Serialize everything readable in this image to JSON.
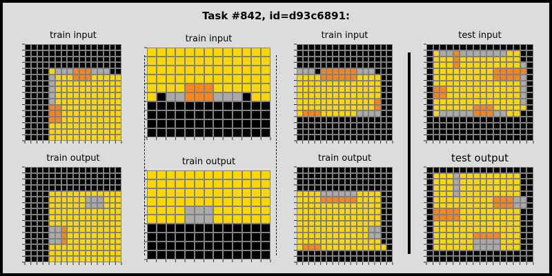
{
  "title": "Task #842, id=d93c6891:",
  "palette": {
    "0": "#000000",
    "4": "#ffd700",
    "5": "#aaaaaa",
    "7": "#ff851b"
  },
  "panels": [
    {
      "label": "train input",
      "rows": [
        "0000000000000000",
        "0000000000000000",
        "0000000000000000",
        "0000000000000000",
        "0000455577755500",
        "0000544477744444",
        "0000544444444444",
        "0000544444444444",
        "0000544444444444",
        "0000544444444444",
        "0000774444444444",
        "0000774444444444",
        "0000774444444444",
        "0000444444444444",
        "0000444444444444",
        "0000444444444444"
      ]
    },
    {
      "label": "train output",
      "rows": [
        "0000000000000000",
        "0000000000000000",
        "0000000000000000",
        "0000000000000000",
        "0000444444444444",
        "0000444444555444",
        "0000444444555444",
        "0000444444444444",
        "0000444444444444",
        "0000444444444444",
        "0000557444444444",
        "0000557444444444",
        "0000557444444444",
        "0000444444444444",
        "0000444444444444",
        "0000444444444444"
      ]
    },
    {
      "label": "train input",
      "rows": [
        "4444444444444",
        "4444444444444",
        "4444444444444",
        "4444444444444",
        "4444777444444",
        "4255777555244",
        "0000000000000",
        "0000000000000",
        "0000000000000",
        "0000000000000"
      ]
    },
    {
      "label": "train output",
      "rows": [
        "4444444444444",
        "4444444444444",
        "4444444444444",
        "4444444444444",
        "4444555444444",
        "4444555444444",
        "0000000000000",
        "0000000000000",
        "0000000000000",
        "0000000000000"
      ]
    },
    {
      "label": "train input",
      "rows": [
        "0000000000000000",
        "0000000000000000",
        "0000000000000000",
        "0000000000000000",
        "5553777777555000",
        "4444777777444400",
        "4444444444444400",
        "4444444444444400",
        "4444444444444400",
        "4444444444444700",
        "4444444444444700",
        "4777444444555500",
        "0000000000000000",
        "0000000000000000",
        "0000000000000000",
        "0000000000000000"
      ]
    },
    {
      "label": "train output",
      "rows": [
        "0000000000000000",
        "0000000000000000",
        "0000000000000000",
        "0000000000000000",
        "4444555555444400",
        "4444777777444400",
        "4444444444444400",
        "4444444444444400",
        "4444444444444400",
        "4444444444444400",
        "4444444444445500",
        "4444444444445500",
        "4444444444444400",
        "4777444444444440",
        "0000000000000000",
        "0000000000000000"
      ]
    },
    {
      "label": "test input",
      "rows": [
        "0000000000000000",
        "0455755555554400",
        "0444744444444400",
        "0444744444444450",
        "0444444444777770",
        "0444444444777750",
        "0444444444444450",
        "0774444444444450",
        "0774444444444450",
        "0444444444444450",
        "0444444777444440",
        "0455555777554400",
        "0000000000000000",
        "0000000000000000",
        "0000000000000000",
        "0000000000000000"
      ]
    },
    {
      "label": "test output",
      "rows": [
        "0000000000000000",
        "0444544444444400",
        "0444544444444400",
        "0444544444444400",
        "0444544444444400",
        "0444444444777550",
        "0444444444777550",
        "0777744444444400",
        "0777744444444400",
        "0444444444444400",
        "0444444444444400",
        "0444444777744400",
        "0444444555544400",
        "0444444555544400",
        "0000000000000000",
        "0000000000000000"
      ]
    }
  ]
}
